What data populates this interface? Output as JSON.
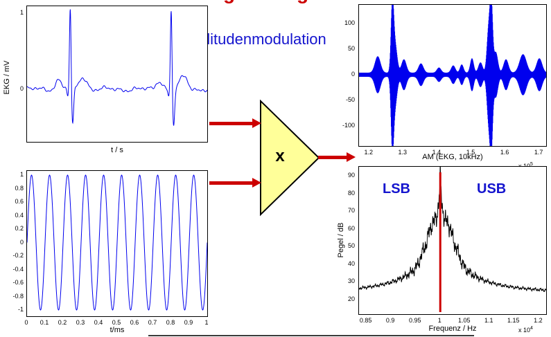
{
  "page": {
    "title": "Amplitudenmodulation",
    "heading_fragments": [
      "g",
      "g"
    ]
  },
  "multiplier": {
    "label": "x"
  },
  "plots": {
    "ekg": {
      "ylabel": "EKG / mV",
      "xlabel": "t / s"
    },
    "carrier": {
      "xlabel": "t/ms"
    },
    "am": {
      "xlabel": "AM (EKG, 10kHz)",
      "exponent": {
        "base": "x 10",
        "power": "5"
      }
    },
    "spectrum": {
      "ylabel": "Pegel / dB",
      "xlabel": "Frequenz / Hz",
      "exponent": {
        "base": "x 10",
        "power": "4"
      },
      "lsb": "LSB",
      "usb": "USB"
    }
  },
  "colors": {
    "signal_blue": "#0000EE",
    "spectrum_black": "#000000",
    "carrier_line_red": "#CC0000",
    "arrow_red": "#CC0000",
    "triangle_yellow": "#FFFF99",
    "title_blue": "#1414CE",
    "heading_red": "#CC0000"
  },
  "chart_data": [
    {
      "id": "ekg",
      "type": "line",
      "title": "",
      "xlabel": "t / s",
      "ylabel": "EKG / mV",
      "xlim": [
        0,
        1
      ],
      "ylim": [
        -0.6,
        1.15
      ],
      "yticks": [
        1,
        0
      ],
      "line_color": "#0000EE",
      "beats": [
        0.24,
        0.8
      ],
      "r_amplitude": 1.08,
      "description": "EKG signal with two heartbeats (P-QRS-T complexes), R peaks about 1 mV"
    },
    {
      "id": "carrier",
      "type": "line",
      "title": "",
      "xlabel": "t/ms",
      "ylabel": "",
      "xlim": [
        0,
        1
      ],
      "ylim": [
        -1,
        1
      ],
      "yticks": [
        1,
        0.8,
        0.6,
        0.4,
        0.2,
        0,
        -0.2,
        -0.4,
        -0.6,
        -0.8,
        -1
      ],
      "xticks": [
        0,
        0.1,
        0.2,
        0.3,
        0.4,
        0.5,
        0.6,
        0.7,
        0.8,
        0.9,
        1
      ],
      "line_color": "#0000EE",
      "cycles": 10,
      "amplitude": 1,
      "description": "10 kHz sinusoidal carrier, 10 periods over 1 ms"
    },
    {
      "id": "am",
      "type": "line",
      "title": "",
      "xlabel": "AM (EKG, 10kHz)",
      "ylabel": "",
      "x_scale_note": "x 10^5",
      "xlim": [
        1.17,
        1.72
      ],
      "ylim": [
        -140,
        140
      ],
      "yticks": [
        100,
        50,
        0,
        -50,
        -100
      ],
      "xticks": [
        1.2,
        1.3,
        1.4,
        1.5,
        1.6,
        1.7
      ],
      "line_color": "#0000EE",
      "baseline_envelope": 4,
      "bursts": [
        [
          1.225,
          0.008,
          32
        ],
        [
          1.268,
          0.004,
          128
        ],
        [
          1.276,
          0.006,
          55
        ],
        [
          1.302,
          0.007,
          26
        ],
        [
          1.352,
          0.007,
          18
        ],
        [
          1.405,
          0.006,
          10
        ],
        [
          1.447,
          0.006,
          14
        ],
        [
          1.472,
          0.005,
          16
        ],
        [
          1.502,
          0.005,
          28
        ],
        [
          1.527,
          0.006,
          20
        ],
        [
          1.551,
          0.005,
          85
        ],
        [
          1.559,
          0.004,
          128
        ],
        [
          1.572,
          0.006,
          40
        ],
        [
          1.602,
          0.007,
          26
        ],
        [
          1.652,
          0.01,
          36
        ],
        [
          1.7,
          0.008,
          28
        ]
      ],
      "description": "Amplitude-modulated EKG on a 10 kHz carrier, sample-index axis"
    },
    {
      "id": "spectrum",
      "type": "line",
      "title": "",
      "xlabel": "Frequenz / Hz",
      "ylabel": "Pegel / dB",
      "x_scale_note": "x 10^4",
      "xlim": [
        0.835,
        1.215
      ],
      "ylim": [
        15,
        97
      ],
      "yticks": [
        90,
        80,
        70,
        60,
        50,
        40,
        30,
        20
      ],
      "xticks": [
        0.85,
        0.9,
        0.95,
        1,
        1.05,
        1.1,
        1.15,
        1.2
      ],
      "line_color": "#000000",
      "carrier": 1.0,
      "carrier_line_color": "#CC0000",
      "peak_db": 95,
      "floor_db": 24,
      "annotations": [
        "LSB",
        "USB"
      ],
      "description": "Magnitude spectrum around the 10 kHz carrier showing lower (LSB) and upper (USB) sidebands"
    }
  ]
}
